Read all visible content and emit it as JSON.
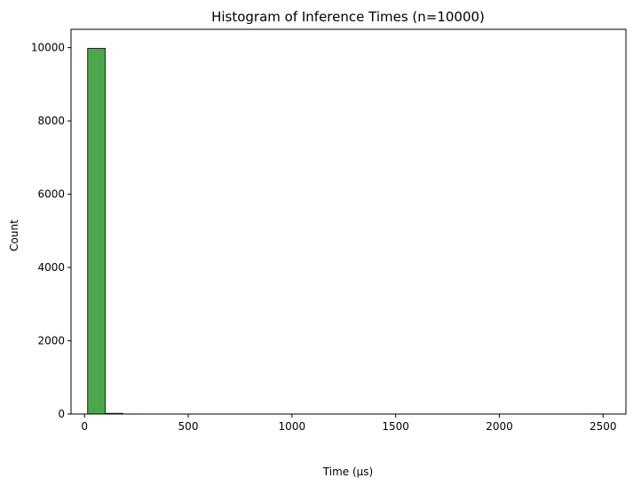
{
  "chart_data": {
    "type": "bar",
    "title": "Histogram of Inference Times (n=10000)",
    "xlabel": "Time (µs)",
    "ylabel": "Count",
    "xlim": [
      -65,
      2610
    ],
    "ylim": [
      0,
      10500
    ],
    "xticks": [
      0,
      500,
      1000,
      1500,
      2000,
      2500
    ],
    "yticks": [
      0,
      2000,
      4000,
      6000,
      8000,
      10000
    ],
    "bins": [
      {
        "x0": 15,
        "x1": 100,
        "count": 9980
      },
      {
        "x0": 100,
        "x1": 185,
        "count": 18
      },
      {
        "x0": 185,
        "x1": 270,
        "count": 1
      },
      {
        "x0": 2420,
        "x1": 2505,
        "count": 1
      }
    ],
    "bar_color": "#4ca64c",
    "edge_color": "#222222",
    "grid": false,
    "legend": "none"
  }
}
